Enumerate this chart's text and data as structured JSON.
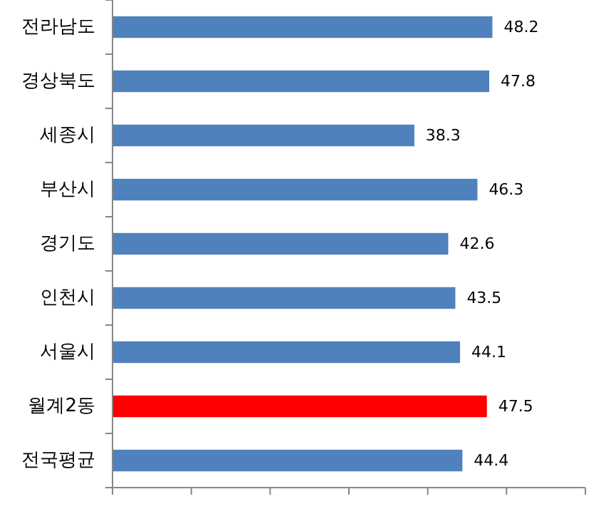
{
  "chart_data": {
    "type": "bar",
    "orientation": "horizontal",
    "categories": [
      "전라남도",
      "경상북도",
      "세종시",
      "부산시",
      "경기도",
      "인천시",
      "서울시",
      "월계2동",
      "전국평균"
    ],
    "values": [
      48.2,
      47.8,
      38.3,
      46.3,
      42.6,
      43.5,
      44.1,
      47.5,
      44.4
    ],
    "colors": [
      "#4f81bd",
      "#4f81bd",
      "#4f81bd",
      "#4f81bd",
      "#4f81bd",
      "#4f81bd",
      "#4f81bd",
      "#ff0000",
      "#4f81bd"
    ],
    "xlim": [
      0,
      60
    ],
    "xticks": [
      {
        "value": 0,
        "label": null
      },
      {
        "value": 10,
        "label": null
      },
      {
        "value": 20,
        "label": null
      },
      {
        "value": 30,
        "label": null
      },
      {
        "value": 40,
        "label": null
      },
      {
        "value": 50,
        "label": null
      },
      {
        "value": 60,
        "label": null
      }
    ],
    "tick_labels": "y",
    "data_labels": true
  }
}
